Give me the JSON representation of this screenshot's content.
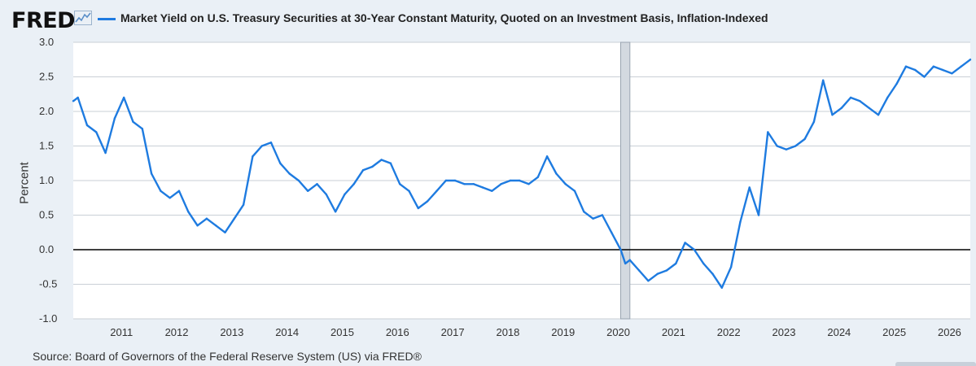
{
  "brand": {
    "logo_text": "FRED"
  },
  "legend": {
    "label": "Market Yield on U.S. Treasury Securities at 30-Year Constant Maturity, Quoted on an Investment Basis, Inflation-Indexed",
    "color": "#1e7be0"
  },
  "footer": {
    "source": "Source: Board of Governors of the Federal Reserve System (US) via FRED®"
  },
  "chart_data": {
    "type": "line",
    "ylabel": "Percent",
    "ylim": [
      -1.0,
      3.0
    ],
    "yticks": [
      "3.0",
      "2.5",
      "2.0",
      "1.5",
      "1.0",
      "0.5",
      "0.0",
      "-0.5",
      "-1.0"
    ],
    "xlim": [
      "2010-03",
      "2026-06"
    ],
    "xticks": [
      "2011",
      "2012",
      "2013",
      "2014",
      "2015",
      "2016",
      "2017",
      "2018",
      "2019",
      "2020",
      "2021",
      "2022",
      "2023",
      "2024",
      "2025",
      "2026"
    ],
    "grid": true,
    "zero_line": true,
    "recession": {
      "start": "2020-02",
      "end": "2020-04"
    },
    "series": [
      {
        "color": "#1e7be0",
        "x": [
          "2010-03",
          "2010-04",
          "2010-06",
          "2010-08",
          "2010-10",
          "2010-12",
          "2011-02",
          "2011-04",
          "2011-06",
          "2011-08",
          "2011-10",
          "2011-12",
          "2012-02",
          "2012-04",
          "2012-06",
          "2012-08",
          "2012-10",
          "2012-12",
          "2013-02",
          "2013-04",
          "2013-06",
          "2013-08",
          "2013-10",
          "2013-12",
          "2014-02",
          "2014-04",
          "2014-06",
          "2014-08",
          "2014-10",
          "2014-12",
          "2015-02",
          "2015-04",
          "2015-06",
          "2015-08",
          "2015-10",
          "2015-12",
          "2016-02",
          "2016-04",
          "2016-06",
          "2016-08",
          "2016-10",
          "2016-12",
          "2017-02",
          "2017-04",
          "2017-06",
          "2017-08",
          "2017-10",
          "2017-12",
          "2018-02",
          "2018-04",
          "2018-06",
          "2018-08",
          "2018-10",
          "2018-12",
          "2019-02",
          "2019-04",
          "2019-06",
          "2019-08",
          "2019-10",
          "2019-12",
          "2020-02",
          "2020-03",
          "2020-04",
          "2020-06",
          "2020-08",
          "2020-10",
          "2020-12",
          "2021-02",
          "2021-04",
          "2021-06",
          "2021-08",
          "2021-10",
          "2021-12",
          "2022-02",
          "2022-04",
          "2022-06",
          "2022-08",
          "2022-10",
          "2022-12",
          "2023-02",
          "2023-04",
          "2023-06",
          "2023-08",
          "2023-10",
          "2023-12",
          "2024-02",
          "2024-04",
          "2024-06",
          "2024-08",
          "2024-10",
          "2024-12",
          "2025-02",
          "2025-04",
          "2025-06",
          "2025-08",
          "2025-10",
          "2025-12",
          "2026-02",
          "2026-04",
          "2026-06"
        ],
        "y": [
          2.15,
          2.2,
          1.8,
          1.7,
          1.4,
          1.9,
          2.2,
          1.85,
          1.75,
          1.1,
          0.85,
          0.75,
          0.85,
          0.55,
          0.35,
          0.45,
          0.35,
          0.25,
          0.45,
          0.65,
          1.35,
          1.5,
          1.55,
          1.25,
          1.1,
          1.0,
          0.85,
          0.95,
          0.8,
          0.55,
          0.8,
          0.95,
          1.15,
          1.2,
          1.3,
          1.25,
          0.95,
          0.85,
          0.6,
          0.7,
          0.85,
          1.0,
          1.0,
          0.95,
          0.95,
          0.9,
          0.85,
          0.95,
          1.0,
          1.0,
          0.95,
          1.05,
          1.35,
          1.1,
          0.95,
          0.85,
          0.55,
          0.45,
          0.5,
          0.25,
          0.0,
          -0.2,
          -0.15,
          -0.3,
          -0.45,
          -0.35,
          -0.3,
          -0.2,
          0.1,
          0.0,
          -0.2,
          -0.35,
          -0.55,
          -0.25,
          0.4,
          0.9,
          0.5,
          1.7,
          1.5,
          1.45,
          1.5,
          1.6,
          1.85,
          2.45,
          1.95,
          2.05,
          2.2,
          2.15,
          2.05,
          1.95,
          2.2,
          2.4,
          2.65,
          2.6,
          2.5,
          2.65,
          2.6,
          2.55,
          2.65,
          2.75
        ]
      }
    ]
  }
}
